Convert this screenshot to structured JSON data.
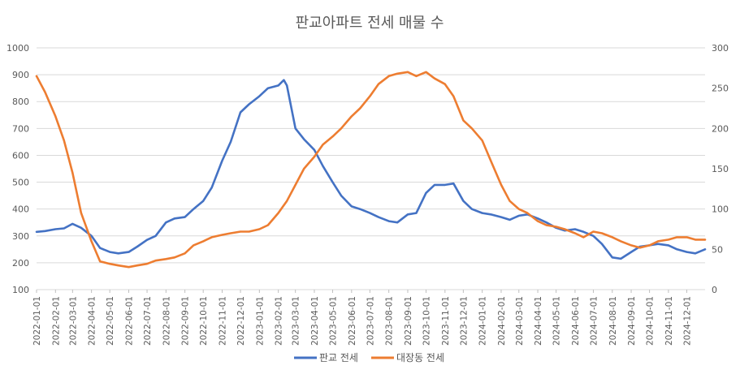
{
  "chart_data": {
    "type": "line",
    "title": "판교아파트 전세 매물 수",
    "y_left": {
      "min": 100,
      "max": 1000,
      "step": 100,
      "ticks": [
        "1000",
        "900",
        "800",
        "700",
        "600",
        "500",
        "400",
        "300",
        "200",
        "100"
      ]
    },
    "y_right": {
      "min": 0,
      "max": 300,
      "step": 50,
      "ticks": [
        "300",
        "250",
        "200",
        "150",
        "100",
        "50",
        "0"
      ]
    },
    "x_ticks": [
      "2022-01-01",
      "2022-02-01",
      "2022-03-01",
      "2022-04-01",
      "2022-05-01",
      "2022-06-01",
      "2022-07-01",
      "2022-08-01",
      "2022-09-01",
      "2022-10-01",
      "2022-11-01",
      "2022-12-01",
      "2023-01-01",
      "2023-02-01",
      "2023-03-01",
      "2023-04-01",
      "2023-05-01",
      "2023-06-01",
      "2023-07-01",
      "2023-08-01",
      "2023-09-01",
      "2023-10-01",
      "2023-11-01",
      "2023-12-01",
      "2024-01-01",
      "2024-02-01",
      "2024-03-01",
      "2024-04-01",
      "2024-05-01",
      "2024-06-01",
      "2024-07-01",
      "2024-08-01",
      "2024-09-01",
      "2024-10-01",
      "2024-11-01",
      "2024-12-01"
    ],
    "legend_position": "bottom",
    "grid": true,
    "series": [
      {
        "name": "판교 전세",
        "axis": "left",
        "color": "#4472C4",
        "x": [
          "2022-01-01",
          "2022-01-15",
          "2022-02-01",
          "2022-02-15",
          "2022-03-01",
          "2022-03-15",
          "2022-04-01",
          "2022-04-15",
          "2022-05-01",
          "2022-05-15",
          "2022-06-01",
          "2022-06-15",
          "2022-07-01",
          "2022-07-15",
          "2022-08-01",
          "2022-08-15",
          "2022-09-01",
          "2022-09-15",
          "2022-10-01",
          "2022-10-15",
          "2022-11-01",
          "2022-11-15",
          "2022-12-01",
          "2022-12-15",
          "2023-01-01",
          "2023-01-15",
          "2023-02-01",
          "2023-02-10",
          "2023-02-15",
          "2023-03-01",
          "2023-03-15",
          "2023-04-01",
          "2023-04-15",
          "2023-05-01",
          "2023-05-15",
          "2023-06-01",
          "2023-06-15",
          "2023-07-01",
          "2023-07-15",
          "2023-08-01",
          "2023-08-15",
          "2023-09-01",
          "2023-09-15",
          "2023-10-01",
          "2023-10-15",
          "2023-11-01",
          "2023-11-15",
          "2023-12-01",
          "2023-12-15",
          "2024-01-01",
          "2024-01-15",
          "2024-02-01",
          "2024-02-15",
          "2024-03-01",
          "2024-03-15",
          "2024-04-01",
          "2024-04-15",
          "2024-05-01",
          "2024-05-15",
          "2024-06-01",
          "2024-06-15",
          "2024-07-01",
          "2024-07-15",
          "2024-08-01",
          "2024-08-15",
          "2024-09-01",
          "2024-09-15",
          "2024-10-01",
          "2024-10-15",
          "2024-11-01",
          "2024-11-15",
          "2024-12-01",
          "2024-12-15",
          "2024-12-31"
        ],
        "values": [
          315,
          318,
          325,
          328,
          345,
          330,
          300,
          255,
          240,
          235,
          240,
          260,
          285,
          300,
          350,
          365,
          370,
          400,
          430,
          480,
          580,
          650,
          760,
          790,
          820,
          850,
          860,
          880,
          860,
          700,
          660,
          620,
          560,
          500,
          450,
          410,
          400,
          385,
          370,
          355,
          350,
          380,
          385,
          460,
          490,
          490,
          495,
          430,
          400,
          385,
          380,
          370,
          360,
          375,
          380,
          365,
          350,
          330,
          320,
          325,
          315,
          300,
          270,
          220,
          215,
          240,
          260,
          265,
          270,
          265,
          250,
          240,
          235,
          250
        ]
      },
      {
        "name": "대장동 전세",
        "axis": "right",
        "color": "#ED7D31",
        "x": [
          "2022-01-01",
          "2022-01-15",
          "2022-02-01",
          "2022-02-15",
          "2022-03-01",
          "2022-03-15",
          "2022-04-01",
          "2022-04-15",
          "2022-05-01",
          "2022-05-15",
          "2022-06-01",
          "2022-06-15",
          "2022-07-01",
          "2022-07-15",
          "2022-08-01",
          "2022-08-15",
          "2022-09-01",
          "2022-09-15",
          "2022-10-01",
          "2022-10-15",
          "2022-11-01",
          "2022-11-15",
          "2022-12-01",
          "2022-12-15",
          "2023-01-01",
          "2023-01-15",
          "2023-02-01",
          "2023-02-15",
          "2023-03-01",
          "2023-03-15",
          "2023-04-01",
          "2023-04-15",
          "2023-05-01",
          "2023-05-15",
          "2023-06-01",
          "2023-06-15",
          "2023-07-01",
          "2023-07-15",
          "2023-08-01",
          "2023-08-15",
          "2023-09-01",
          "2023-09-15",
          "2023-10-01",
          "2023-10-15",
          "2023-11-01",
          "2023-11-15",
          "2023-12-01",
          "2023-12-15",
          "2024-01-01",
          "2024-01-15",
          "2024-02-01",
          "2024-02-15",
          "2024-03-01",
          "2024-03-15",
          "2024-04-01",
          "2024-04-15",
          "2024-05-01",
          "2024-05-15",
          "2024-06-01",
          "2024-06-15",
          "2024-07-01",
          "2024-07-15",
          "2024-08-01",
          "2024-08-15",
          "2024-09-01",
          "2024-09-15",
          "2024-10-01",
          "2024-10-15",
          "2024-11-01",
          "2024-11-15",
          "2024-12-01",
          "2024-12-15",
          "2024-12-31"
        ],
        "values": [
          265,
          245,
          215,
          185,
          145,
          95,
          60,
          35,
          32,
          30,
          28,
          30,
          32,
          36,
          38,
          40,
          45,
          55,
          60,
          65,
          68,
          70,
          72,
          72,
          75,
          80,
          95,
          110,
          130,
          150,
          165,
          180,
          190,
          200,
          215,
          225,
          240,
          255,
          265,
          268,
          270,
          265,
          270,
          262,
          255,
          240,
          210,
          200,
          185,
          160,
          130,
          110,
          100,
          95,
          85,
          80,
          78,
          75,
          70,
          65,
          72,
          70,
          65,
          60,
          55,
          52,
          55,
          60,
          62,
          65,
          65,
          62,
          62
        ]
      }
    ]
  }
}
